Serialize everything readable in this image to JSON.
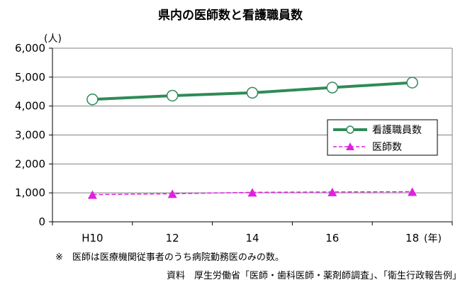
{
  "chart_data": {
    "type": "line",
    "title": "県内の医師数と看護職員数",
    "y_unit_label": "(人)",
    "x_unit_label": "(年)",
    "categories": [
      "H10",
      "12",
      "14",
      "16",
      "18"
    ],
    "ylim": [
      0,
      6000
    ],
    "y_ticks": [
      "0",
      "1,000",
      "2,000",
      "3,000",
      "4,000",
      "5,000",
      "6,000"
    ],
    "y_tick_values": [
      0,
      1000,
      2000,
      3000,
      4000,
      5000,
      6000
    ],
    "grid": true,
    "legend_position": "right",
    "series": [
      {
        "name": "看護職員数",
        "values": [
          4230,
          4360,
          4460,
          4640,
          4810
        ],
        "color": "#2e8b57",
        "marker": "circle",
        "line_style": "solid"
      },
      {
        "name": "医師数",
        "values": [
          940,
          970,
          1020,
          1030,
          1040
        ],
        "color": "#e020e0",
        "marker": "triangle",
        "line_style": "dashed"
      }
    ]
  },
  "notes": {
    "footnote": "※　医師は医療機関従事者のうち病院勤務医のみの数。",
    "source": "資料　厚生労働省「医師・歯科医師・薬剤師調査」、「衛生行政報告例」"
  }
}
